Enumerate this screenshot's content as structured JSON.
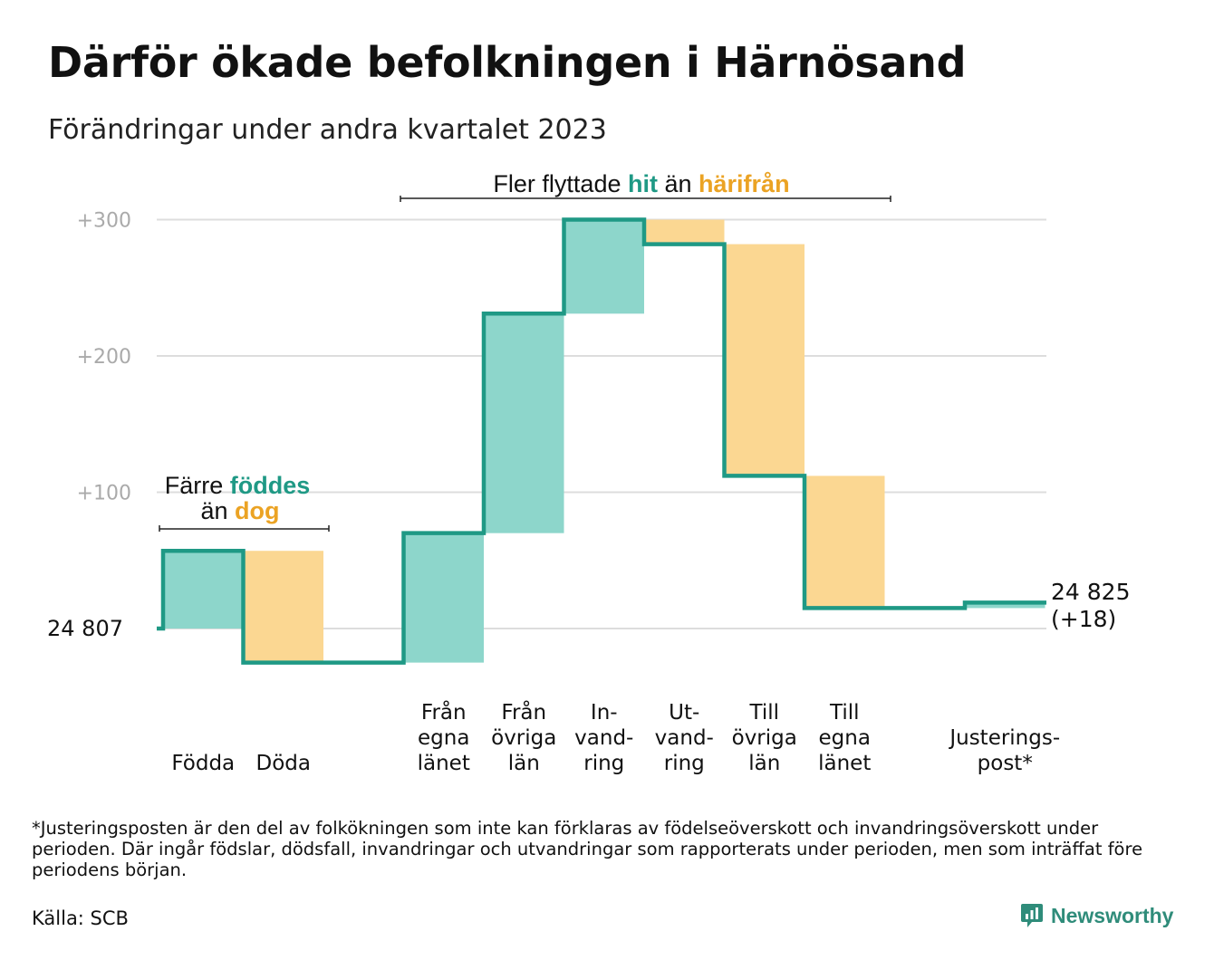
{
  "title": "Därför ökade befolkningen i Härnösand",
  "subtitle": "Förändringar under andra kvartalet 2023",
  "footnote": "*Justeringsposten är den del av folkökningen som inte kan förklaras av födelseöverskott och invandringsöverskott under perioden. Där ingår födslar, dödsfall, invandringar och utvandringar som rapporterats under perioden, men som inträffat före periodens början.",
  "source": "Källa: SCB",
  "logo_text": "Newsworthy",
  "colors": {
    "increase_fill": "#8dd6cb",
    "decrease_fill": "#fbd792",
    "line": "#1f9985",
    "teal_text": "#1f9985",
    "orange_text": "#eba324",
    "grid": "#dddddd",
    "tick_text": "#aaaaaa"
  },
  "chart_data": {
    "type": "waterfall",
    "start_label": "24  807",
    "end_label_value": "24 825",
    "end_label_change": "(+18)",
    "y_ticks": [
      "+100",
      "+200",
      "+300"
    ],
    "ylim": [
      -30,
      310
    ],
    "start_value": 0,
    "steps": [
      {
        "label": [
          "Födda"
        ],
        "delta": 57
      },
      {
        "label": [
          "Döda"
        ],
        "delta": -82
      },
      {
        "label": [],
        "delta": 0
      },
      {
        "label": [
          "Från",
          "egna",
          "länet"
        ],
        "delta": 95
      },
      {
        "label": [
          "Från",
          "övriga",
          "län"
        ],
        "delta": 161
      },
      {
        "label": [
          "In-",
          "vand-",
          "ring"
        ],
        "delta": 69
      },
      {
        "label": [
          "Ut-",
          "vand-",
          "ring"
        ],
        "delta": -18
      },
      {
        "label": [
          "Till",
          "övriga",
          "län"
        ],
        "delta": -170
      },
      {
        "label": [
          "Till",
          "egna",
          "länet"
        ],
        "delta": -97
      },
      {
        "label": [],
        "delta": 0
      },
      {
        "label": [
          "Justerings-",
          "post*"
        ],
        "delta": 4
      }
    ],
    "annotations": {
      "births": {
        "line1_prefix": "Färre",
        "line1_colored": "föddes",
        "line2_prefix": "än",
        "line2_colored": "dog"
      },
      "migration": {
        "prefix": "Fler flyttade",
        "colored1": "hit",
        "middle": "än",
        "colored2": "härifrån"
      }
    }
  }
}
